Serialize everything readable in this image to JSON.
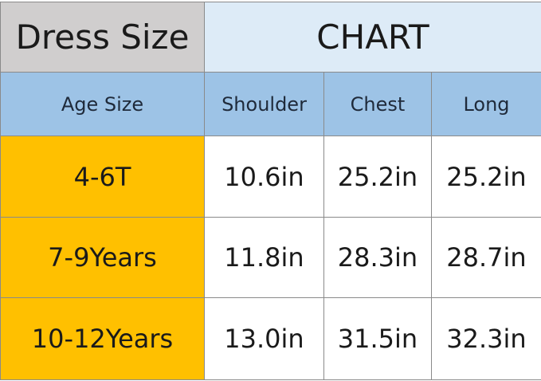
{
  "colors": {
    "title_left_bg": "#d0cece",
    "title_right_bg": "#ddebf7",
    "header_bg": "#9dc3e6",
    "size_bg": "#ffc000",
    "cell_bg": "#ffffff"
  },
  "title": {
    "left": "Dress Size",
    "right": "CHART"
  },
  "headers": [
    "Age Size",
    "Shoulder",
    "Chest",
    "Long"
  ],
  "rows": [
    [
      "4-6T",
      "10.6in",
      "25.2in",
      "25.2in"
    ],
    [
      "7-9Years",
      "11.8in",
      "28.3in",
      "28.7in"
    ],
    [
      "10-12Years",
      "13.0in",
      "31.5in",
      "32.3in"
    ]
  ]
}
